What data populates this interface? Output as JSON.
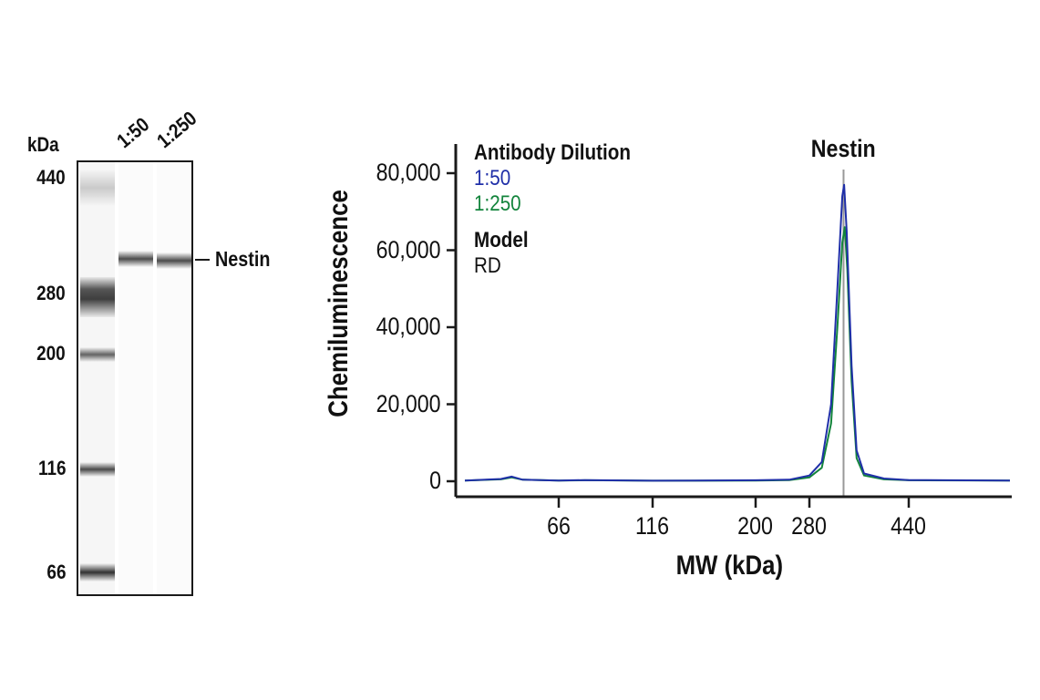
{
  "gel": {
    "unit_label": "kDa",
    "lane_labels": [
      "1:50",
      "1:250"
    ],
    "ladder_markers": [
      "440",
      "280",
      "200",
      "116",
      "66"
    ],
    "band_label": "Nestin"
  },
  "colors": {
    "dilution_1_50": "#1f2fa8",
    "dilution_1_250": "#13843c",
    "marker_line": "#999999",
    "axis": "#1a1a1a"
  },
  "chart_data": {
    "type": "line",
    "title": "Nestin",
    "xlabel": "MW (kDa)",
    "ylabel": "Chemiluminescence",
    "x_ticks": [
      "66",
      "116",
      "200",
      "280",
      "440"
    ],
    "y_ticks": [
      0,
      20000,
      40000,
      60000,
      80000
    ],
    "y_tick_labels": [
      "0",
      "20,000",
      "40,000",
      "60,000",
      "80,000"
    ],
    "ylim": [
      0,
      85000
    ],
    "peak_marker_kda": 335,
    "legend": {
      "heading": "Antibody Dilution",
      "entries": [
        "1:50",
        "1:250"
      ],
      "model_heading": "Model",
      "model_value": "RD"
    },
    "series": [
      {
        "name": "1:50",
        "points": [
          [
            40,
            200
          ],
          [
            50,
            600
          ],
          [
            53,
            1200
          ],
          [
            56,
            400
          ],
          [
            66,
            200
          ],
          [
            80,
            300
          ],
          [
            116,
            150
          ],
          [
            200,
            250
          ],
          [
            250,
            400
          ],
          [
            280,
            1500
          ],
          [
            300,
            5000
          ],
          [
            315,
            20000
          ],
          [
            325,
            50000
          ],
          [
            333,
            74000
          ],
          [
            336,
            77000
          ],
          [
            340,
            65000
          ],
          [
            348,
            30000
          ],
          [
            356,
            8000
          ],
          [
            368,
            2000
          ],
          [
            400,
            700
          ],
          [
            440,
            300
          ],
          [
            600,
            200
          ]
        ]
      },
      {
        "name": "1:250",
        "points": [
          [
            40,
            200
          ],
          [
            50,
            500
          ],
          [
            53,
            1000
          ],
          [
            56,
            400
          ],
          [
            66,
            200
          ],
          [
            80,
            250
          ],
          [
            116,
            150
          ],
          [
            200,
            200
          ],
          [
            250,
            300
          ],
          [
            280,
            1000
          ],
          [
            300,
            3500
          ],
          [
            315,
            15000
          ],
          [
            325,
            40000
          ],
          [
            333,
            62000
          ],
          [
            337,
            66000
          ],
          [
            341,
            55000
          ],
          [
            348,
            26000
          ],
          [
            356,
            6000
          ],
          [
            368,
            1500
          ],
          [
            400,
            500
          ],
          [
            440,
            250
          ],
          [
            600,
            200
          ]
        ]
      }
    ]
  }
}
